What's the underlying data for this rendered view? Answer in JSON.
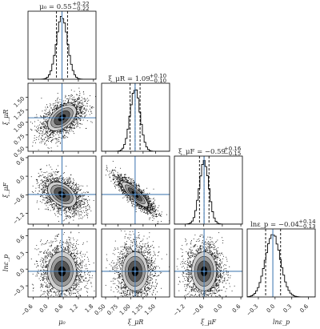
{
  "chart_data": {
    "type": "corner",
    "parameters": [
      {
        "id": "mu0",
        "label": "μ₀",
        "median": 0.55,
        "err_plus": 0.22,
        "err_minus": 0.22,
        "truth": 0.55,
        "title": "μ₀ = 0.55",
        "err_text_plus": "+0.22",
        "err_text_minus": "−0.22",
        "range": [
          -0.8,
          1.9
        ],
        "ticks": [
          -0.6,
          0.0,
          0.6,
          1.2,
          1.8
        ],
        "tick_labels": [
          "−0.6",
          "0.0",
          "0.6",
          "1.2",
          "1.8"
        ],
        "sd": 0.22
      },
      {
        "id": "xiuR",
        "label": "ξ_μR",
        "median": 1.09,
        "err_plus": 0.1,
        "err_minus": 0.1,
        "truth": 1.09,
        "title": "ξ_μR = 1.09",
        "err_text_plus": "+0.10",
        "err_text_minus": "−0.10",
        "range": [
          0.42,
          1.78
        ],
        "ticks": [
          0.5,
          0.75,
          1.0,
          1.25,
          1.5
        ],
        "tick_labels": [
          "0.50",
          "0.75",
          "1.00",
          "1.25",
          "1.50"
        ],
        "sd": 0.1
      },
      {
        "id": "xiuF",
        "label": "ξ_μF",
        "median": -0.59,
        "err_plus": 0.16,
        "err_minus": 0.15,
        "truth": -0.59,
        "title": "ξ_μF = −0.59",
        "err_text_plus": "+0.16",
        "err_text_minus": "−0.15",
        "range": [
          -1.55,
          0.65
        ],
        "ticks": [
          -1.2,
          -0.6,
          0.0,
          0.6
        ],
        "tick_labels": [
          "−1.2",
          "−0.6",
          "0.0",
          "0.6"
        ],
        "sd": 0.155
      },
      {
        "id": "lnep",
        "label": "lnε_p",
        "median": -0.04,
        "err_plus": 0.14,
        "err_minus": 0.13,
        "truth": -0.04,
        "title": "lnε_p = −0.04",
        "err_text_plus": "+0.14",
        "err_text_minus": "−0.13",
        "range": [
          -0.5,
          0.72
        ],
        "ticks": [
          -0.3,
          0.0,
          0.3,
          0.6
        ],
        "tick_labels": [
          "−0.3",
          "0.0",
          "0.3",
          "0.6"
        ],
        "sd": 0.135
      }
    ],
    "correlations": [
      [
        1.0,
        0.5,
        -0.4,
        0.0
      ],
      [
        0.5,
        1.0,
        -0.85,
        0.0
      ],
      [
        -0.4,
        -0.85,
        1.0,
        0.0
      ],
      [
        0.0,
        0.0,
        0.0,
        1.0
      ]
    ],
    "quantiles_shown": [
      0.16,
      0.5,
      0.84
    ],
    "truth_line_color": "#4a7fb5",
    "contour_fill_colors": [
      "#000000",
      "#555555",
      "#9a9a9a",
      "#cfcfcf"
    ],
    "grid": false
  }
}
